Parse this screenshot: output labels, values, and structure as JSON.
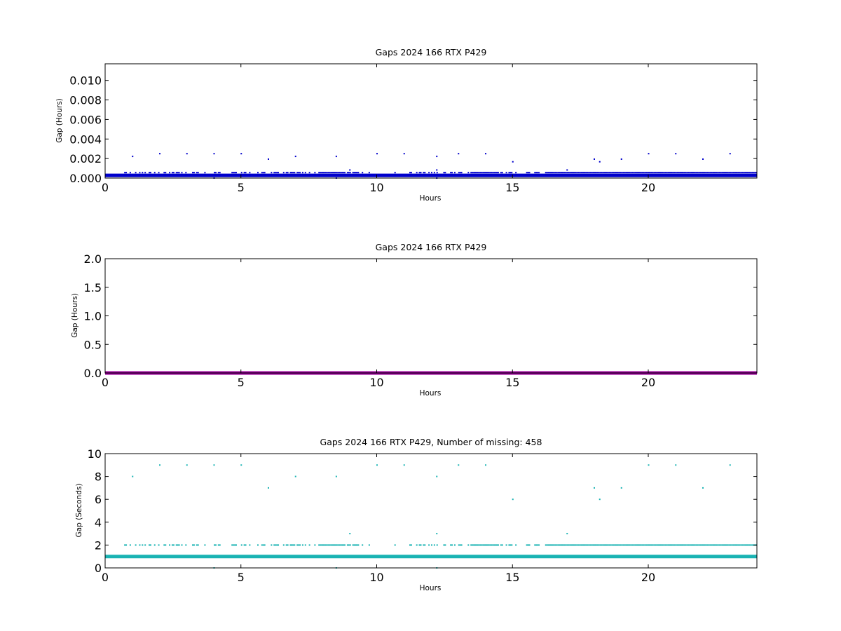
{
  "chart_data": [
    {
      "type": "scatter",
      "title": "Gaps 2024 166 RTX  P429",
      "xlabel": "Hours",
      "ylabel": "Gap (Hours)",
      "xlim": [
        0,
        24
      ],
      "ylim": [
        0,
        0.0117
      ],
      "xticks": [
        0,
        5,
        10,
        15,
        20
      ],
      "yticks": [
        0.0,
        0.002,
        0.004,
        0.006,
        0.008,
        0.01
      ],
      "ytick_labels": [
        "0.000",
        "0.002",
        "0.004",
        "0.006",
        "0.008",
        "0.010"
      ],
      "color": "#0000cc",
      "baseline_value": 0.00028,
      "series": [
        {
          "x": [
            1.0,
            2.0,
            3.0,
            4.0,
            5.0,
            7.0,
            8.5,
            10.0,
            11.0,
            12.2,
            13.0,
            14.0,
            20.0,
            21.0,
            23.0,
            6.0,
            18.0,
            19.0,
            22.0,
            15.0,
            18.2,
            9.0,
            17.0,
            12.2,
            4.0,
            8.5,
            12.2
          ],
          "y": [
            0.00222,
            0.0025,
            0.0025,
            0.0025,
            0.0025,
            0.00222,
            0.00222,
            0.0025,
            0.0025,
            0.00222,
            0.0025,
            0.0025,
            0.0025,
            0.0025,
            0.0025,
            0.00194,
            0.00194,
            0.00194,
            0.00194,
            0.00167,
            0.00167,
            0.00083,
            0.00083,
            0.00083,
            0.0,
            0.0,
            0.0
          ]
        }
      ]
    },
    {
      "type": "line",
      "title": "Gaps 2024 166 RTX  P429",
      "xlabel": "Hours",
      "ylabel": "Gap (Hours)",
      "xlim": [
        0,
        24
      ],
      "ylim": [
        0,
        2.0
      ],
      "xticks": [
        0,
        5,
        10,
        15,
        20
      ],
      "yticks": [
        0.0,
        0.5,
        1.0,
        1.5,
        2.0
      ],
      "ytick_labels": [
        "0.0",
        "0.5",
        "1.0",
        "1.5",
        "2.0"
      ],
      "color": "#990099",
      "series": [
        {
          "x": [
            0,
            24
          ],
          "y": [
            0,
            0
          ]
        }
      ]
    },
    {
      "type": "scatter",
      "title": "Gaps 2024 166 RTX  P429, Number of missing: 458",
      "xlabel": "Hours",
      "ylabel": "Gap (Seconds)",
      "xlim": [
        0,
        24
      ],
      "ylim": [
        0,
        10
      ],
      "xticks": [
        0,
        5,
        10,
        15,
        20
      ],
      "yticks": [
        0,
        2,
        4,
        6,
        8,
        10
      ],
      "ytick_labels": [
        "0",
        "2",
        "4",
        "6",
        "8",
        "10"
      ],
      "color": "#1ab3b3",
      "baseline_value": 1,
      "series": [
        {
          "x": [
            2.0,
            3.0,
            4.0,
            5.0,
            10.0,
            11.0,
            13.0,
            14.0,
            20.0,
            21.0,
            23.0,
            1.0,
            7.0,
            8.5,
            12.2,
            6.0,
            18.0,
            19.0,
            22.0,
            15.0,
            18.2,
            9.0,
            12.2,
            17.0,
            4.0,
            8.5,
            12.2
          ],
          "y": [
            9,
            9,
            9,
            9,
            9,
            9,
            9,
            9,
            9,
            9,
            9,
            8,
            8,
            8,
            8,
            7,
            7,
            7,
            7,
            6,
            6,
            3,
            3,
            3,
            0,
            0,
            0
          ]
        }
      ]
    }
  ]
}
